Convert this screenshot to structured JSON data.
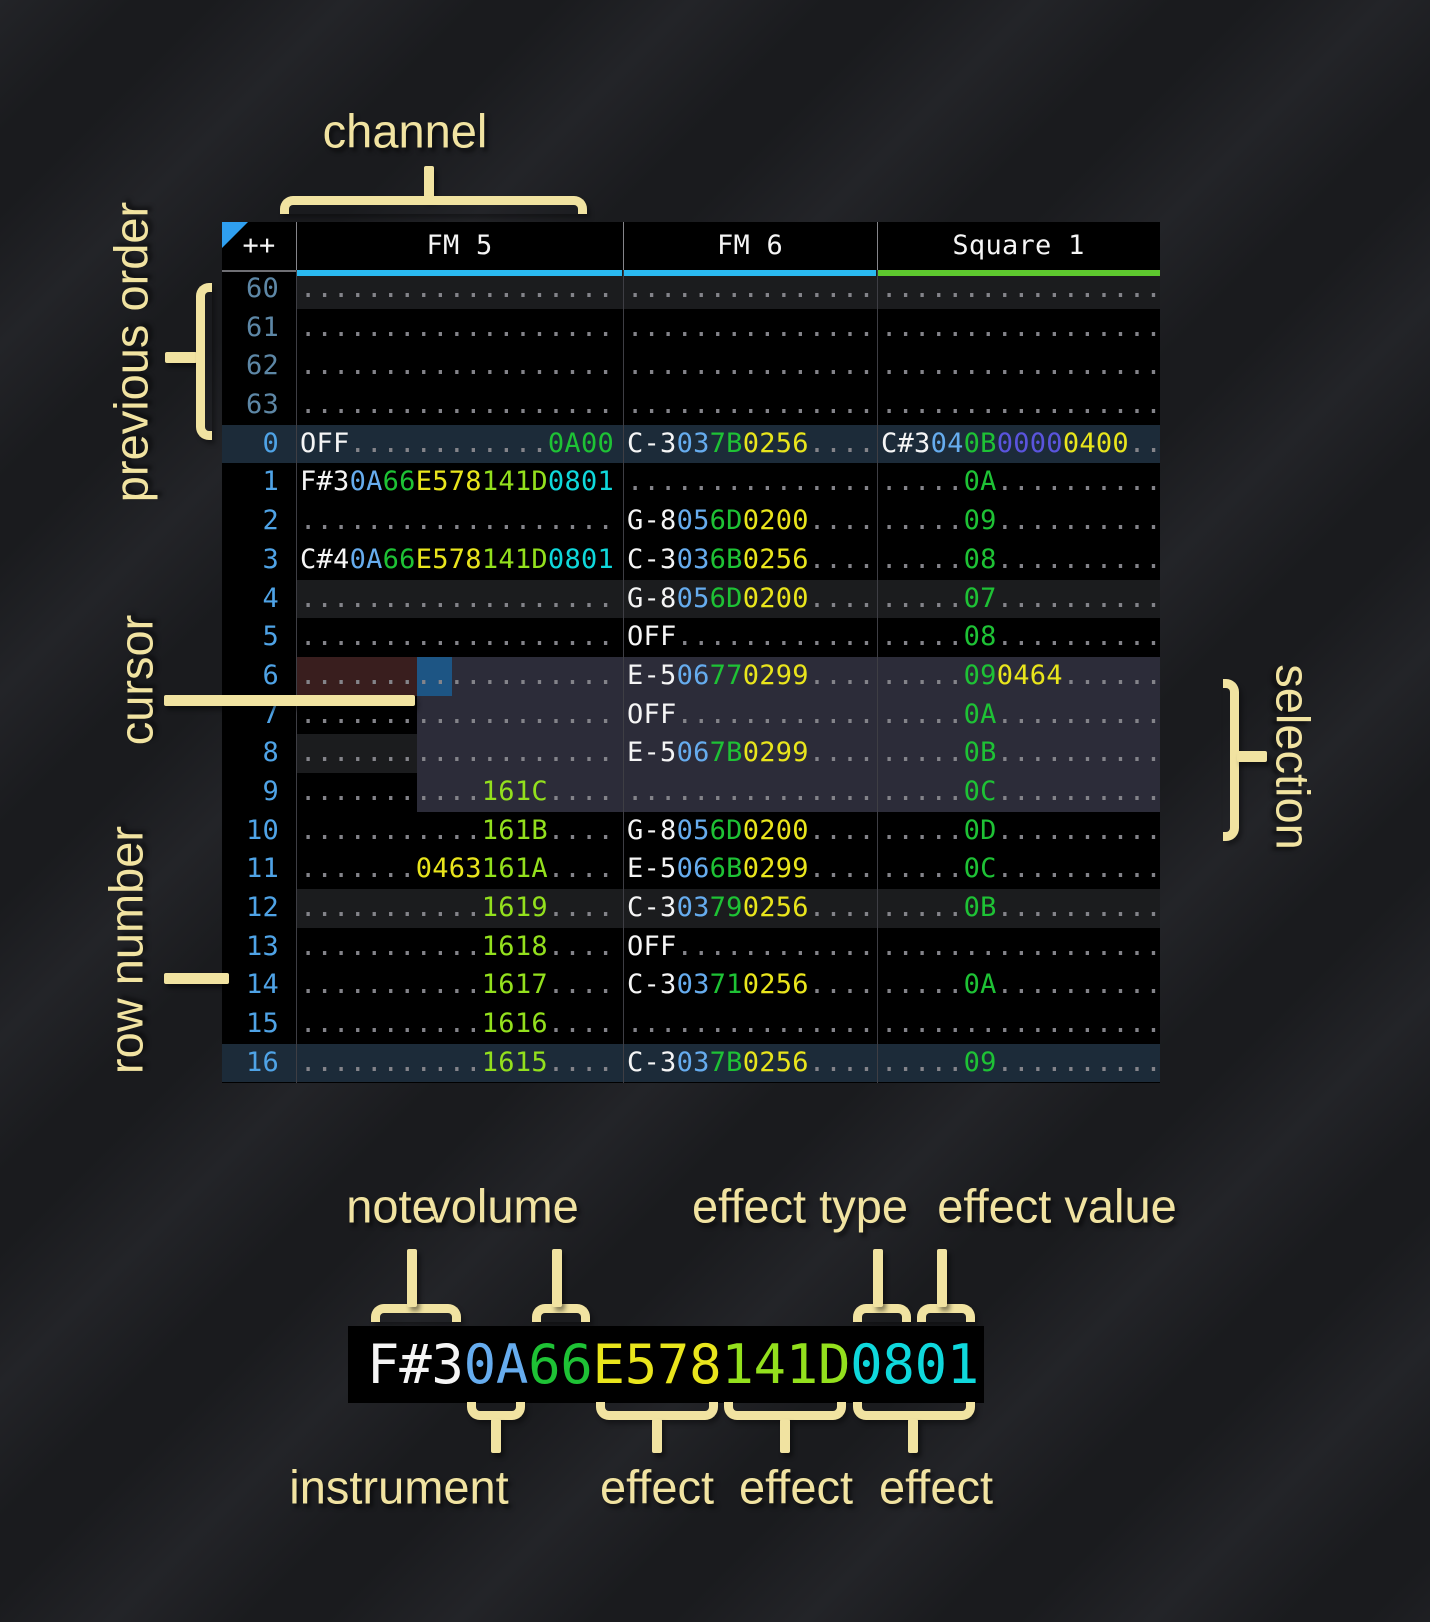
{
  "annotations": {
    "channel": "channel",
    "previous_order": "previous order",
    "cursor": "cursor",
    "row_number": "row number",
    "selection": "selection"
  },
  "tracker": {
    "corner": "++",
    "channels": [
      {
        "name": "FM 5",
        "color": "#2ab9f0"
      },
      {
        "name": "FM 6",
        "color": "#2ab9f0"
      },
      {
        "name": "Square 1",
        "color": "#5dc72e"
      }
    ],
    "rows": [
      {
        "n": "60",
        "dim": true,
        "hl": "minor",
        "fm5": [
          [
            "...................",
            "dot"
          ]
        ],
        "fm6": [
          [
            "...............",
            "dot"
          ]
        ],
        "sq1": [
          [
            ".................",
            "dot"
          ]
        ]
      },
      {
        "n": "61",
        "dim": true,
        "fm5": [
          [
            "...................",
            "dot"
          ]
        ],
        "fm6": [
          [
            "...............",
            "dot"
          ]
        ],
        "sq1": [
          [
            ".................",
            "dot"
          ]
        ]
      },
      {
        "n": "62",
        "dim": true,
        "fm5": [
          [
            "...................",
            "dot"
          ]
        ],
        "fm6": [
          [
            "...............",
            "dot"
          ]
        ],
        "sq1": [
          [
            ".................",
            "dot"
          ]
        ]
      },
      {
        "n": "63",
        "dim": true,
        "fm5": [
          [
            "...................",
            "dot"
          ]
        ],
        "fm6": [
          [
            "...............",
            "dot"
          ]
        ],
        "sq1": [
          [
            ".................",
            "dot"
          ]
        ]
      },
      {
        "n": "0",
        "hl": "major",
        "fm5": [
          [
            "OFF",
            "w"
          ],
          [
            "............",
            "dot"
          ],
          [
            "0A00",
            "fxg"
          ]
        ],
        "fm6": [
          [
            "C-3",
            "w"
          ],
          [
            "03",
            "ins"
          ],
          [
            "7B",
            "vol"
          ],
          [
            "0256",
            "fxy"
          ],
          [
            "....",
            "dot"
          ]
        ],
        "sq1": [
          [
            "C#3",
            "w"
          ],
          [
            "04",
            "ins"
          ],
          [
            "0B",
            "vol"
          ],
          [
            "0000",
            "fxi"
          ],
          [
            "0400",
            "fxy"
          ],
          [
            "..",
            "dot"
          ]
        ]
      },
      {
        "n": "1",
        "fm5": [
          [
            "F#3",
            "w"
          ],
          [
            "0A",
            "ins"
          ],
          [
            "66",
            "vol"
          ],
          [
            "E578",
            "fxy"
          ],
          [
            "141D",
            "fxl"
          ],
          [
            "0801",
            "fxc"
          ]
        ],
        "fm6": [
          [
            "...............",
            "dot"
          ]
        ],
        "sq1": [
          [
            ".....",
            "dot"
          ],
          [
            "0A",
            "vol"
          ],
          [
            "..........",
            "dot"
          ]
        ]
      },
      {
        "n": "2",
        "fm5": [
          [
            "...................",
            "dot"
          ]
        ],
        "fm6": [
          [
            "G-8",
            "w"
          ],
          [
            "05",
            "ins"
          ],
          [
            "6D",
            "vol"
          ],
          [
            "0200",
            "fxy"
          ],
          [
            "....",
            "dot"
          ]
        ],
        "sq1": [
          [
            ".....",
            "dot"
          ],
          [
            "09",
            "vol"
          ],
          [
            "..........",
            "dot"
          ]
        ]
      },
      {
        "n": "3",
        "fm5": [
          [
            "C#4",
            "w"
          ],
          [
            "0A",
            "ins"
          ],
          [
            "66",
            "vol"
          ],
          [
            "E578",
            "fxy"
          ],
          [
            "141D",
            "fxl"
          ],
          [
            "0801",
            "fxc"
          ]
        ],
        "fm6": [
          [
            "C-3",
            "w"
          ],
          [
            "03",
            "ins"
          ],
          [
            "6B",
            "vol"
          ],
          [
            "0256",
            "fxy"
          ],
          [
            "....",
            "dot"
          ]
        ],
        "sq1": [
          [
            ".....",
            "dot"
          ],
          [
            "08",
            "vol"
          ],
          [
            "..........",
            "dot"
          ]
        ]
      },
      {
        "n": "4",
        "hl": "minor",
        "fm5": [
          [
            "...................",
            "dot"
          ]
        ],
        "fm6": [
          [
            "G-8",
            "w"
          ],
          [
            "05",
            "ins"
          ],
          [
            "6D",
            "vol"
          ],
          [
            "0200",
            "fxy"
          ],
          [
            "....",
            "dot"
          ]
        ],
        "sq1": [
          [
            ".....",
            "dot"
          ],
          [
            "07",
            "vol"
          ],
          [
            "..........",
            "dot"
          ]
        ]
      },
      {
        "n": "5",
        "fm5": [
          [
            "...................",
            "dot"
          ]
        ],
        "fm6": [
          [
            "OFF",
            "w"
          ],
          [
            "............",
            "dot"
          ]
        ],
        "sq1": [
          [
            ".....",
            "dot"
          ],
          [
            "08",
            "vol"
          ],
          [
            "..........",
            "dot"
          ]
        ]
      },
      {
        "n": "6",
        "fm5": [
          [
            "...................",
            "dot"
          ]
        ],
        "fm6": [
          [
            "E-5",
            "w"
          ],
          [
            "06",
            "ins"
          ],
          [
            "77",
            "vol"
          ],
          [
            "0299",
            "fxy"
          ],
          [
            "....",
            "dot"
          ]
        ],
        "sq1": [
          [
            ".....",
            "dot"
          ],
          [
            "09",
            "vol"
          ],
          [
            "0464",
            "fxy"
          ],
          [
            "......",
            "dot"
          ]
        ]
      },
      {
        "n": "7",
        "fm5": [
          [
            "...................",
            "dot"
          ]
        ],
        "fm6": [
          [
            "OFF",
            "w"
          ],
          [
            "............",
            "dot"
          ]
        ],
        "sq1": [
          [
            ".....",
            "dot"
          ],
          [
            "0A",
            "vol"
          ],
          [
            "..........",
            "dot"
          ]
        ]
      },
      {
        "n": "8",
        "hl": "minor",
        "fm5": [
          [
            "...................",
            "dot"
          ]
        ],
        "fm6": [
          [
            "E-5",
            "w"
          ],
          [
            "06",
            "ins"
          ],
          [
            "7B",
            "vol"
          ],
          [
            "0299",
            "fxy"
          ],
          [
            "....",
            "dot"
          ]
        ],
        "sq1": [
          [
            ".....",
            "dot"
          ],
          [
            "0B",
            "vol"
          ],
          [
            "..........",
            "dot"
          ]
        ]
      },
      {
        "n": "9",
        "fm5": [
          [
            "...........",
            "dot"
          ],
          [
            "161C",
            "fxl"
          ],
          [
            "....",
            "dot"
          ]
        ],
        "fm6": [
          [
            "...............",
            "dot"
          ]
        ],
        "sq1": [
          [
            ".....",
            "dot"
          ],
          [
            "0C",
            "vol"
          ],
          [
            "..........",
            "dot"
          ]
        ]
      },
      {
        "n": "10",
        "fm5": [
          [
            "...........",
            "dot"
          ],
          [
            "161B",
            "fxl"
          ],
          [
            "....",
            "dot"
          ]
        ],
        "fm6": [
          [
            "G-8",
            "w"
          ],
          [
            "05",
            "ins"
          ],
          [
            "6D",
            "vol"
          ],
          [
            "0200",
            "fxy"
          ],
          [
            "....",
            "dot"
          ]
        ],
        "sq1": [
          [
            ".....",
            "dot"
          ],
          [
            "0D",
            "vol"
          ],
          [
            "..........",
            "dot"
          ]
        ]
      },
      {
        "n": "11",
        "fm5": [
          [
            ".......",
            "dot"
          ],
          [
            "0463",
            "fxy"
          ],
          [
            "161A",
            "fxl"
          ],
          [
            "....",
            "dot"
          ]
        ],
        "fm6": [
          [
            "E-5",
            "w"
          ],
          [
            "06",
            "ins"
          ],
          [
            "6B",
            "vol"
          ],
          [
            "0299",
            "fxy"
          ],
          [
            "....",
            "dot"
          ]
        ],
        "sq1": [
          [
            ".....",
            "dot"
          ],
          [
            "0C",
            "vol"
          ],
          [
            "..........",
            "dot"
          ]
        ]
      },
      {
        "n": "12",
        "hl": "minor",
        "fm5": [
          [
            "...........",
            "dot"
          ],
          [
            "1619",
            "fxl"
          ],
          [
            "....",
            "dot"
          ]
        ],
        "fm6": [
          [
            "C-3",
            "w"
          ],
          [
            "03",
            "ins"
          ],
          [
            "79",
            "vol"
          ],
          [
            "0256",
            "fxy"
          ],
          [
            "....",
            "dot"
          ]
        ],
        "sq1": [
          [
            ".....",
            "dot"
          ],
          [
            "0B",
            "vol"
          ],
          [
            "..........",
            "dot"
          ]
        ]
      },
      {
        "n": "13",
        "fm5": [
          [
            "...........",
            "dot"
          ],
          [
            "1618",
            "fxl"
          ],
          [
            "....",
            "dot"
          ]
        ],
        "fm6": [
          [
            "OFF",
            "w"
          ],
          [
            "............",
            "dot"
          ]
        ],
        "sq1": [
          [
            ".................",
            "dot"
          ]
        ]
      },
      {
        "n": "14",
        "fm5": [
          [
            "...........",
            "dot"
          ],
          [
            "1617",
            "fxl"
          ],
          [
            "....",
            "dot"
          ]
        ],
        "fm6": [
          [
            "C-3",
            "w"
          ],
          [
            "03",
            "ins"
          ],
          [
            "71",
            "vol"
          ],
          [
            "0256",
            "fxy"
          ],
          [
            "....",
            "dot"
          ]
        ],
        "sq1": [
          [
            ".....",
            "dot"
          ],
          [
            "0A",
            "vol"
          ],
          [
            "..........",
            "dot"
          ]
        ]
      },
      {
        "n": "15",
        "fm5": [
          [
            "...........",
            "dot"
          ],
          [
            "1616",
            "fxl"
          ],
          [
            "....",
            "dot"
          ]
        ],
        "fm6": [
          [
            "...............",
            "dot"
          ]
        ],
        "sq1": [
          [
            ".................",
            "dot"
          ]
        ]
      },
      {
        "n": "16",
        "hl": "major",
        "fm5": [
          [
            "...........",
            "dot"
          ],
          [
            "1615",
            "fxl"
          ],
          [
            "....",
            "dot"
          ]
        ],
        "fm6": [
          [
            "C-3",
            "w"
          ],
          [
            "03",
            "ins"
          ],
          [
            "7B",
            "vol"
          ],
          [
            "0256",
            "fxy"
          ],
          [
            "....",
            "dot"
          ]
        ],
        "sq1": [
          [
            ".....",
            "dot"
          ],
          [
            "09",
            "vol"
          ],
          [
            "..........",
            "dot"
          ]
        ]
      }
    ]
  },
  "breakdown": {
    "segments": [
      [
        "F#3",
        "w"
      ],
      [
        "0A",
        "ins"
      ],
      [
        "66",
        "vol"
      ],
      [
        "E578",
        "fxy"
      ],
      [
        "141D",
        "fxl"
      ],
      [
        "0801",
        "fxc"
      ]
    ],
    "top_groups": [
      {
        "label": "note",
        "chars": [
          0,
          3
        ]
      },
      {
        "label": "volume",
        "chars": [
          5,
          7
        ]
      },
      {
        "label": "effect type",
        "chars": [
          15,
          17
        ]
      },
      {
        "label": "effect value",
        "chars": [
          17,
          19
        ]
      }
    ],
    "bottom_groups": [
      {
        "label": "instrument",
        "chars": [
          3,
          5
        ]
      },
      {
        "label": "effect",
        "chars": [
          7,
          11
        ]
      },
      {
        "label": "effect",
        "chars": [
          11,
          15
        ]
      },
      {
        "label": "effect",
        "chars": [
          15,
          19
        ]
      }
    ]
  }
}
